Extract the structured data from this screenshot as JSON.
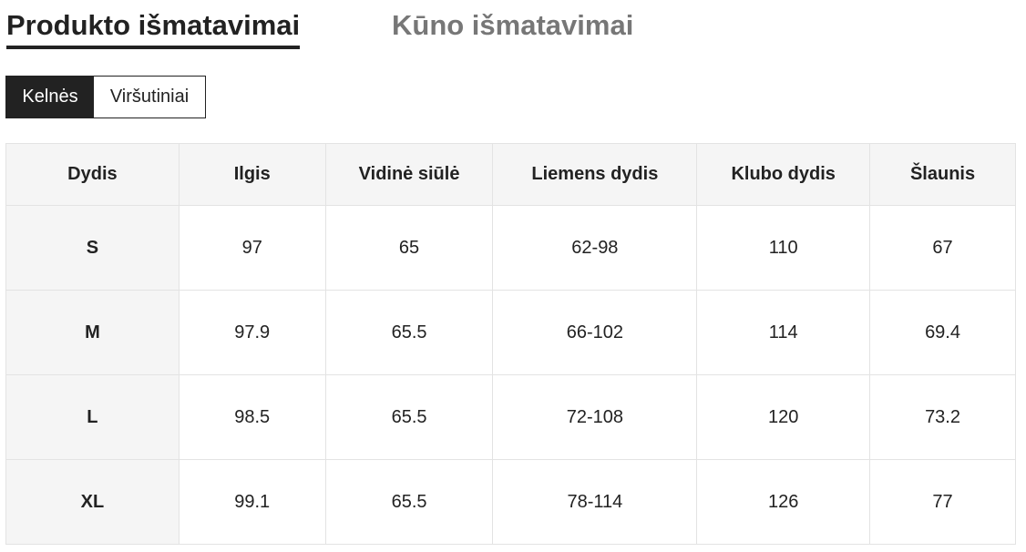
{
  "tabs": [
    {
      "label": "Produkto išmatavimai",
      "active": true
    },
    {
      "label": "Kūno išmatavimai",
      "active": false
    }
  ],
  "categories": [
    {
      "label": "Kelnės",
      "active": true
    },
    {
      "label": "Viršutiniai",
      "active": false
    }
  ],
  "table": {
    "headers": [
      "Dydis",
      "Ilgis",
      "Vidinė siūlė",
      "Liemens dydis",
      "Klubo dydis",
      "Šlaunis"
    ],
    "rows": [
      [
        "S",
        "97",
        "65",
        "62-98",
        "110",
        "67"
      ],
      [
        "M",
        "97.9",
        "65.5",
        "66-102",
        "114",
        "69.4"
      ],
      [
        "L",
        "98.5",
        "65.5",
        "72-108",
        "120",
        "73.2"
      ],
      [
        "XL",
        "99.1",
        "65.5",
        "78-114",
        "126",
        "77"
      ]
    ]
  }
}
